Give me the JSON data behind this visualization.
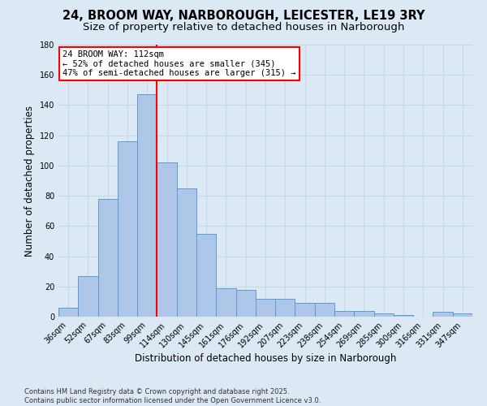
{
  "title": "24, BROOM WAY, NARBOROUGH, LEICESTER, LE19 3RY",
  "subtitle": "Size of property relative to detached houses in Narborough",
  "xlabel": "Distribution of detached houses by size in Narborough",
  "ylabel": "Number of detached properties",
  "categories": [
    "36sqm",
    "52sqm",
    "67sqm",
    "83sqm",
    "99sqm",
    "114sqm",
    "130sqm",
    "145sqm",
    "161sqm",
    "176sqm",
    "192sqm",
    "207sqm",
    "223sqm",
    "238sqm",
    "254sqm",
    "269sqm",
    "285sqm",
    "300sqm",
    "316sqm",
    "331sqm",
    "347sqm"
  ],
  "values": [
    6,
    27,
    78,
    116,
    147,
    102,
    85,
    55,
    19,
    18,
    12,
    12,
    9,
    9,
    4,
    4,
    2,
    1,
    0,
    3,
    2
  ],
  "bar_color": "#aec6e8",
  "bar_edge_color": "#5b9bd5",
  "grid_color": "#c8d8e8",
  "background_color": "#dce9f5",
  "vline_index": 5,
  "vline_color": "red",
  "annotation_text": "24 BROOM WAY: 112sqm\n← 52% of detached houses are smaller (345)\n47% of semi-detached houses are larger (315) →",
  "annotation_box_color": "white",
  "annotation_box_edge_color": "red",
  "ylim": [
    0,
    180
  ],
  "yticks": [
    0,
    20,
    40,
    60,
    80,
    100,
    120,
    140,
    160,
    180
  ],
  "footer": "Contains HM Land Registry data © Crown copyright and database right 2025.\nContains public sector information licensed under the Open Government Licence v3.0.",
  "title_fontsize": 10.5,
  "subtitle_fontsize": 9.5,
  "xlabel_fontsize": 8.5,
  "ylabel_fontsize": 8.5,
  "tick_fontsize": 7,
  "annotation_fontsize": 7.5,
  "footer_fontsize": 6
}
